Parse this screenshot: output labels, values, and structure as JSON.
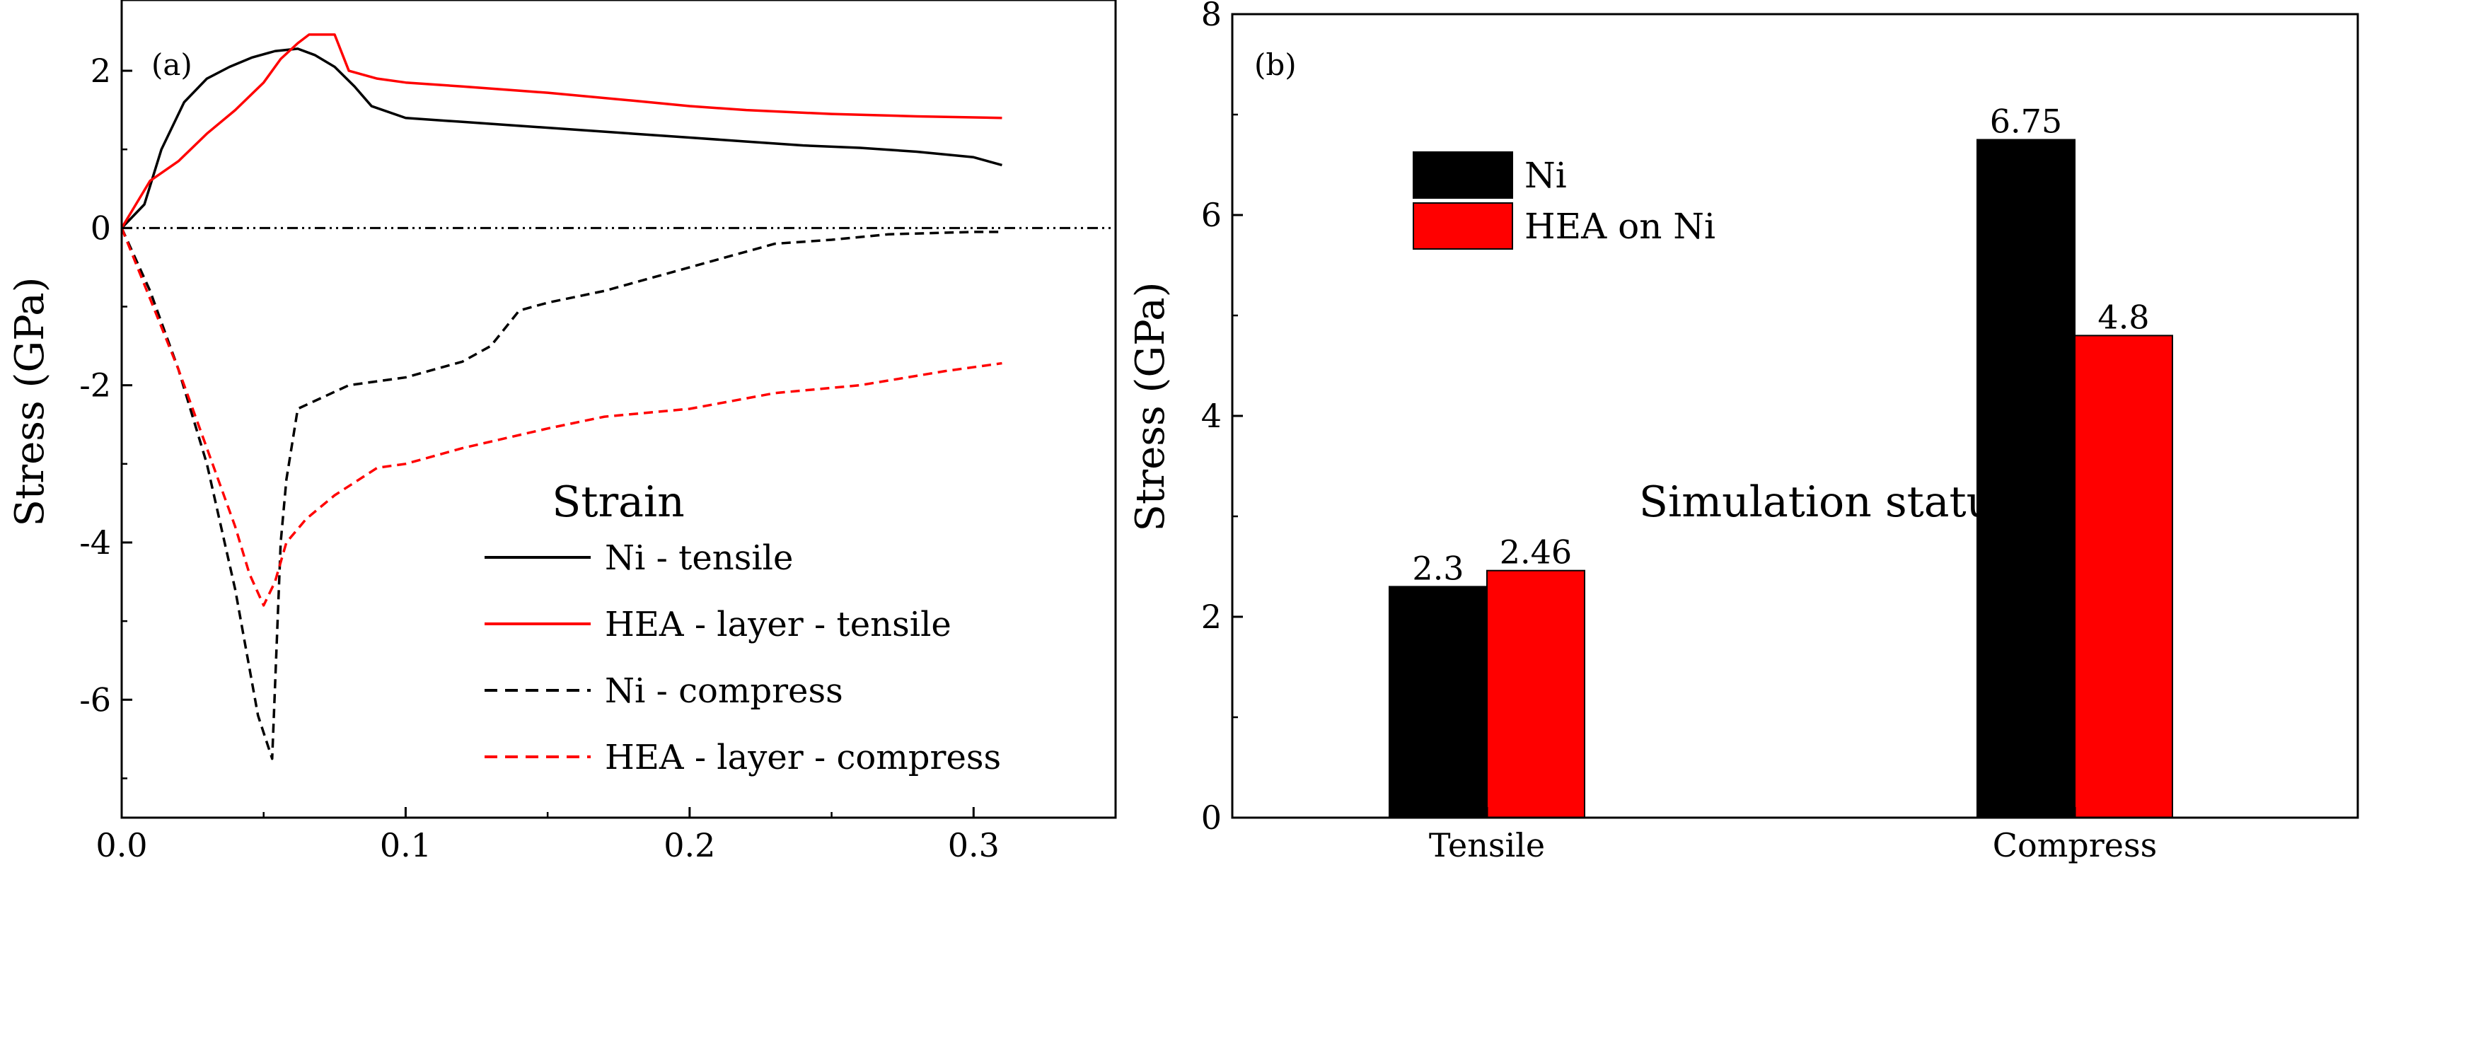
{
  "chart_data": [
    {
      "type": "line",
      "panel_label": "(a)",
      "xlabel": "Strain",
      "ylabel": "Stress (GPa)",
      "xlim": [
        0.0,
        0.35
      ],
      "ylim": [
        -7.5,
        2.9
      ],
      "xticks": [
        0.0,
        0.1,
        0.2,
        0.3
      ],
      "xtick_labels": [
        "0.0",
        "0.1",
        "0.2",
        "0.3"
      ],
      "yticks": [
        -6,
        -4,
        -2,
        0,
        2
      ],
      "ytick_labels": [
        "-6",
        "-4",
        "-2",
        "0",
        "2"
      ],
      "legend_position": "lower-right",
      "reference_line": {
        "y": 0,
        "style": "dash-dot",
        "color": "#000000"
      },
      "series": [
        {
          "name": "Ni - tensile",
          "color": "#000000",
          "style": "solid",
          "x": [
            0.0,
            0.008,
            0.014,
            0.022,
            0.03,
            0.038,
            0.046,
            0.054,
            0.062,
            0.068,
            0.075,
            0.082,
            0.088,
            0.1,
            0.12,
            0.14,
            0.16,
            0.18,
            0.2,
            0.22,
            0.24,
            0.26,
            0.28,
            0.3,
            0.31
          ],
          "y": [
            0.0,
            0.3,
            1.0,
            1.6,
            1.9,
            2.05,
            2.17,
            2.25,
            2.28,
            2.2,
            2.05,
            1.8,
            1.55,
            1.4,
            1.35,
            1.3,
            1.25,
            1.2,
            1.15,
            1.1,
            1.05,
            1.02,
            0.97,
            0.9,
            0.8
          ]
        },
        {
          "name": "HEA - layer - tensile",
          "color": "#ff0000",
          "style": "solid",
          "x": [
            0.0,
            0.01,
            0.02,
            0.03,
            0.04,
            0.05,
            0.056,
            0.062,
            0.066,
            0.075,
            0.08,
            0.09,
            0.1,
            0.12,
            0.15,
            0.18,
            0.2,
            0.22,
            0.25,
            0.28,
            0.31
          ],
          "y": [
            0.0,
            0.6,
            0.85,
            1.2,
            1.5,
            1.85,
            2.15,
            2.35,
            2.46,
            2.46,
            2.0,
            1.9,
            1.85,
            1.8,
            1.72,
            1.62,
            1.55,
            1.5,
            1.45,
            1.42,
            1.4
          ]
        },
        {
          "name": "Ni - compress",
          "color": "#000000",
          "style": "dashed",
          "x": [
            0.0,
            0.01,
            0.02,
            0.03,
            0.04,
            0.048,
            0.053,
            0.056,
            0.058,
            0.062,
            0.068,
            0.08,
            0.1,
            0.12,
            0.13,
            0.14,
            0.15,
            0.17,
            0.19,
            0.21,
            0.23,
            0.25,
            0.27,
            0.3,
            0.31
          ],
          "y": [
            0.0,
            -0.8,
            -1.8,
            -3.0,
            -4.6,
            -6.2,
            -6.75,
            -4.0,
            -3.2,
            -2.3,
            -2.2,
            -2.0,
            -1.9,
            -1.7,
            -1.5,
            -1.05,
            -0.95,
            -0.8,
            -0.6,
            -0.4,
            -0.2,
            -0.15,
            -0.08,
            -0.05,
            -0.05
          ]
        },
        {
          "name": "HEA - layer - compress",
          "color": "#ff0000",
          "style": "dashed",
          "x": [
            0.0,
            0.01,
            0.02,
            0.03,
            0.04,
            0.045,
            0.05,
            0.054,
            0.058,
            0.065,
            0.075,
            0.09,
            0.1,
            0.12,
            0.15,
            0.17,
            0.2,
            0.23,
            0.26,
            0.29,
            0.31
          ],
          "y": [
            0.0,
            -0.9,
            -1.8,
            -2.8,
            -3.8,
            -4.4,
            -4.8,
            -4.5,
            -4.0,
            -3.7,
            -3.4,
            -3.05,
            -3.0,
            -2.8,
            -2.55,
            -2.4,
            -2.3,
            -2.1,
            -2.0,
            -1.82,
            -1.72
          ]
        }
      ]
    },
    {
      "type": "bar",
      "panel_label": "(b)",
      "xlabel": "Simulation status",
      "ylabel": "Stress (GPa)",
      "ylim": [
        0,
        8
      ],
      "yticks": [
        0,
        2,
        4,
        6,
        8
      ],
      "ytick_labels": [
        "0",
        "2",
        "4",
        "6",
        "8"
      ],
      "categories": [
        "Tensile",
        "Compress"
      ],
      "legend_position": "top-left",
      "series": [
        {
          "name": "Ni",
          "color": "#000000",
          "values": [
            2.3,
            6.75
          ],
          "labels": [
            "2.3",
            "6.75"
          ]
        },
        {
          "name": "HEA on Ni",
          "color": "#ff0000",
          "values": [
            2.46,
            4.8
          ],
          "labels": [
            "2.46",
            "4.8"
          ]
        }
      ]
    }
  ]
}
